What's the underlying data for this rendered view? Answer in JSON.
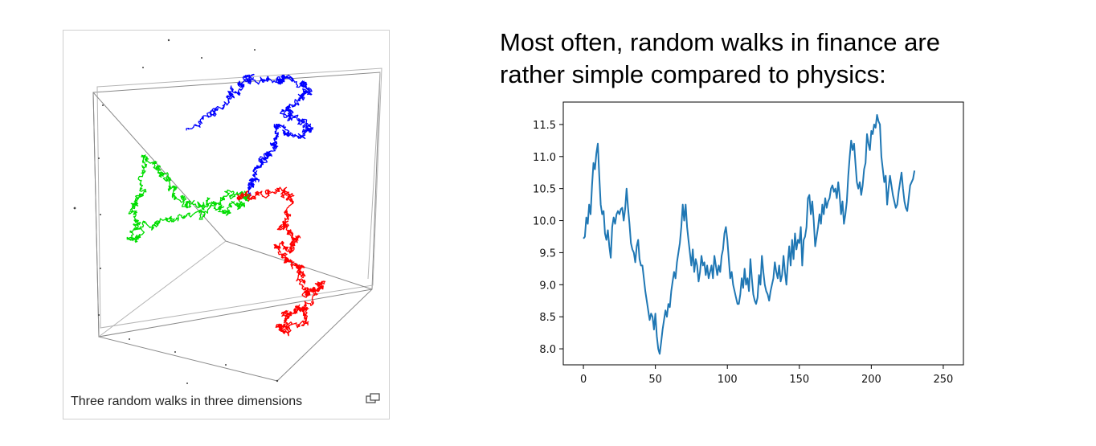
{
  "figure": {
    "caption": "Three random walks in three dimensions",
    "enlarge_icon": "enlarge-icon",
    "walk_colors": [
      "#0000ff",
      "#00dd00",
      "#ff0000"
    ]
  },
  "headline": {
    "line1": "Most often, random walks in finance are",
    "line2": "rather simple compared to physics:"
  },
  "chart_data": {
    "type": "line",
    "title": "",
    "xlabel": "",
    "ylabel": "",
    "xlim": [
      -14,
      264
    ],
    "ylim": [
      7.75,
      11.85
    ],
    "x_ticks": [
      0,
      50,
      100,
      150,
      200,
      250
    ],
    "x_tick_labels": [
      "0",
      "50",
      "100",
      "150",
      "200",
      "250"
    ],
    "y_ticks": [
      8.0,
      8.5,
      9.0,
      9.5,
      10.0,
      10.5,
      11.0,
      11.5
    ],
    "y_tick_labels": [
      "8.0",
      "8.5",
      "9.0",
      "9.5",
      "10.0",
      "10.5",
      "11.0",
      "11.5"
    ],
    "grid": false,
    "series": [
      {
        "color": "#1f77b4",
        "points": [
          [
            0,
            9.72
          ],
          [
            1,
            9.75
          ],
          [
            2,
            10.05
          ],
          [
            3,
            9.95
          ],
          [
            4,
            10.25
          ],
          [
            5,
            10.1
          ],
          [
            6,
            10.55
          ],
          [
            7,
            10.9
          ],
          [
            8,
            10.8
          ],
          [
            9,
            11.05
          ],
          [
            10,
            11.2
          ],
          [
            11,
            10.7
          ],
          [
            12,
            10.25
          ],
          [
            13,
            10.1
          ],
          [
            14,
            10.15
          ],
          [
            15,
            9.8
          ],
          [
            16,
            9.7
          ],
          [
            17,
            9.85
          ],
          [
            18,
            9.6
          ],
          [
            19,
            9.42
          ],
          [
            20,
            9.9
          ],
          [
            21,
            10.05
          ],
          [
            22,
            9.95
          ],
          [
            23,
            10.1
          ],
          [
            24,
            10.15
          ],
          [
            25,
            10.1
          ],
          [
            26,
            10.18
          ],
          [
            27,
            10.2
          ],
          [
            28,
            10.0
          ],
          [
            29,
            10.18
          ],
          [
            30,
            10.5
          ],
          [
            31,
            10.2
          ],
          [
            32,
            9.95
          ],
          [
            33,
            9.65
          ],
          [
            34,
            9.55
          ],
          [
            35,
            9.5
          ],
          [
            36,
            9.35
          ],
          [
            37,
            9.6
          ],
          [
            38,
            9.7
          ],
          [
            39,
            9.4
          ],
          [
            40,
            9.3
          ],
          [
            41,
            9.3
          ],
          [
            42,
            9.1
          ],
          [
            43,
            8.9
          ],
          [
            44,
            8.75
          ],
          [
            45,
            8.6
          ],
          [
            46,
            8.45
          ],
          [
            47,
            8.55
          ],
          [
            48,
            8.5
          ],
          [
            49,
            8.3
          ],
          [
            50,
            8.55
          ],
          [
            51,
            8.2
          ],
          [
            52,
            8.0
          ],
          [
            53,
            7.92
          ],
          [
            54,
            8.1
          ],
          [
            55,
            8.3
          ],
          [
            56,
            8.45
          ],
          [
            57,
            8.6
          ],
          [
            58,
            8.5
          ],
          [
            59,
            8.7
          ],
          [
            60,
            8.65
          ],
          [
            61,
            8.9
          ],
          [
            62,
            9.05
          ],
          [
            63,
            9.2
          ],
          [
            64,
            9.1
          ],
          [
            65,
            9.35
          ],
          [
            66,
            9.5
          ],
          [
            67,
            9.65
          ],
          [
            68,
            9.9
          ],
          [
            69,
            10.25
          ],
          [
            70,
            10.0
          ],
          [
            71,
            10.25
          ],
          [
            72,
            9.9
          ],
          [
            73,
            9.7
          ],
          [
            74,
            9.5
          ],
          [
            75,
            9.3
          ],
          [
            76,
            9.55
          ],
          [
            77,
            9.2
          ],
          [
            78,
            9.4
          ],
          [
            79,
            9.3
          ],
          [
            80,
            9.05
          ],
          [
            81,
            9.2
          ],
          [
            82,
            9.45
          ],
          [
            83,
            9.3
          ],
          [
            84,
            9.35
          ],
          [
            85,
            9.15
          ],
          [
            86,
            9.3
          ],
          [
            87,
            9.1
          ],
          [
            88,
            9.2
          ],
          [
            89,
            9.3
          ],
          [
            90,
            9.1
          ],
          [
            91,
            9.45
          ],
          [
            92,
            9.3
          ],
          [
            93,
            9.15
          ],
          [
            94,
            9.3
          ],
          [
            95,
            9.2
          ],
          [
            96,
            9.45
          ],
          [
            97,
            9.55
          ],
          [
            98,
            9.8
          ],
          [
            99,
            9.9
          ],
          [
            100,
            9.7
          ],
          [
            101,
            9.4
          ],
          [
            102,
            9.1
          ],
          [
            103,
            9.2
          ],
          [
            104,
            9.0
          ],
          [
            105,
            8.9
          ],
          [
            106,
            8.8
          ],
          [
            107,
            8.7
          ],
          [
            108,
            8.7
          ],
          [
            109,
            8.85
          ],
          [
            110,
            9.1
          ],
          [
            111,
            8.95
          ],
          [
            112,
            9.25
          ],
          [
            113,
            9.0
          ],
          [
            114,
            9.1
          ],
          [
            115,
            8.9
          ],
          [
            116,
            9.4
          ],
          [
            117,
            9.1
          ],
          [
            118,
            8.85
          ],
          [
            119,
            8.75
          ],
          [
            120,
            8.7
          ],
          [
            121,
            8.8
          ],
          [
            122,
            9.15
          ],
          [
            123,
            9.0
          ],
          [
            124,
            9.45
          ],
          [
            125,
            9.2
          ],
          [
            126,
            9.0
          ],
          [
            127,
            8.9
          ],
          [
            128,
            8.85
          ],
          [
            129,
            8.75
          ],
          [
            130,
            8.9
          ],
          [
            131,
            9.0
          ],
          [
            132,
            9.1
          ],
          [
            133,
            9.35
          ],
          [
            134,
            9.2
          ],
          [
            135,
            9.1
          ],
          [
            136,
            9.3
          ],
          [
            137,
            9.05
          ],
          [
            138,
            9.15
          ],
          [
            139,
            9.45
          ],
          [
            140,
            9.2
          ],
          [
            141,
            9.0
          ],
          [
            142,
            9.35
          ],
          [
            143,
            9.6
          ],
          [
            144,
            9.3
          ],
          [
            145,
            9.7
          ],
          [
            146,
            9.4
          ],
          [
            147,
            9.8
          ],
          [
            148,
            9.55
          ],
          [
            149,
            9.7
          ],
          [
            150,
            9.65
          ],
          [
            151,
            9.9
          ],
          [
            152,
            9.3
          ],
          [
            153,
            9.7
          ],
          [
            154,
            9.75
          ],
          [
            155,
            9.9
          ],
          [
            156,
            10.35
          ],
          [
            157,
            10.4
          ],
          [
            158,
            10.1
          ],
          [
            159,
            10.3
          ],
          [
            160,
            10.0
          ],
          [
            161,
            9.6
          ],
          [
            162,
            9.75
          ],
          [
            163,
            9.9
          ],
          [
            164,
            10.1
          ],
          [
            165,
            9.95
          ],
          [
            166,
            10.25
          ],
          [
            167,
            10.1
          ],
          [
            168,
            10.35
          ],
          [
            169,
            10.2
          ],
          [
            170,
            10.3
          ],
          [
            171,
            10.35
          ],
          [
            172,
            10.5
          ],
          [
            173,
            10.55
          ],
          [
            174,
            10.45
          ],
          [
            175,
            10.5
          ],
          [
            176,
            10.35
          ],
          [
            177,
            10.6
          ],
          [
            178,
            10.4
          ],
          [
            179,
            10.1
          ],
          [
            180,
            10.3
          ],
          [
            181,
            9.95
          ],
          [
            182,
            10.1
          ],
          [
            183,
            10.3
          ],
          [
            184,
            10.7
          ],
          [
            185,
            11.0
          ],
          [
            186,
            11.25
          ],
          [
            187,
            11.1
          ],
          [
            188,
            11.2
          ],
          [
            189,
            10.9
          ],
          [
            190,
            10.6
          ],
          [
            191,
            10.5
          ],
          [
            192,
            10.6
          ],
          [
            193,
            10.4
          ],
          [
            194,
            10.55
          ],
          [
            195,
            10.8
          ],
          [
            196,
            10.9
          ],
          [
            197,
            11.35
          ],
          [
            198,
            11.2
          ],
          [
            199,
            11.1
          ],
          [
            200,
            11.4
          ],
          [
            201,
            11.35
          ],
          [
            202,
            11.5
          ],
          [
            203,
            11.45
          ],
          [
            204,
            11.65
          ],
          [
            205,
            11.55
          ],
          [
            206,
            11.5
          ],
          [
            207,
            11.0
          ],
          [
            208,
            10.8
          ],
          [
            209,
            10.6
          ],
          [
            210,
            10.7
          ],
          [
            211,
            10.25
          ],
          [
            212,
            10.5
          ],
          [
            213,
            10.7
          ],
          [
            214,
            10.55
          ],
          [
            215,
            10.4
          ],
          [
            216,
            10.3
          ],
          [
            217,
            10.2
          ],
          [
            218,
            10.25
          ],
          [
            219,
            10.45
          ],
          [
            220,
            10.6
          ],
          [
            221,
            10.75
          ],
          [
            222,
            10.5
          ],
          [
            223,
            10.3
          ],
          [
            224,
            10.2
          ],
          [
            225,
            10.15
          ],
          [
            226,
            10.35
          ],
          [
            227,
            10.55
          ],
          [
            228,
            10.6
          ],
          [
            229,
            10.65
          ],
          [
            230,
            10.78
          ]
        ]
      }
    ]
  }
}
